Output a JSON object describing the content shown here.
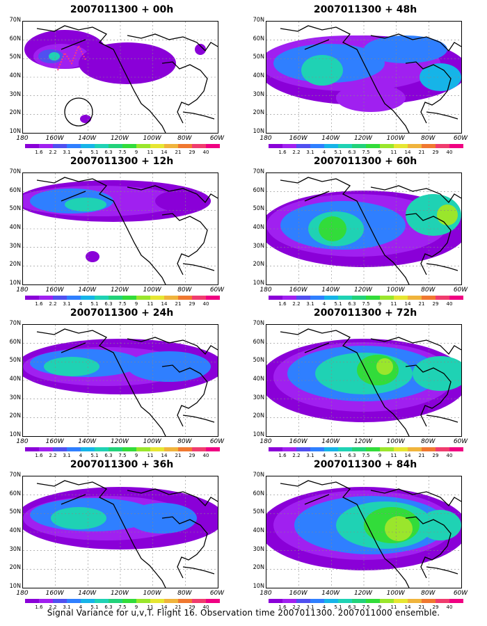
{
  "panels": [
    {
      "title": "2007011300 + 00h"
    },
    {
      "title": "2007011300 + 48h"
    },
    {
      "title": "2007011300 + 12h"
    },
    {
      "title": "2007011300 + 60h"
    },
    {
      "title": "2007011300 + 24h"
    },
    {
      "title": "2007011300 + 72h"
    },
    {
      "title": "2007011300 + 36h"
    },
    {
      "title": "2007011300 + 84h"
    }
  ],
  "lat_labels": [
    "70N",
    "60N",
    "50N",
    "40N",
    "30N",
    "20N",
    "10N"
  ],
  "lon_labels": [
    "180",
    "160W",
    "140W",
    "120W",
    "100W",
    "80W",
    "60W"
  ],
  "colorbar_labels": [
    "1.6",
    "2.2",
    "3.1",
    "4",
    "5.1",
    "6.3",
    "7.5",
    "9",
    "11",
    "14",
    "21",
    "29",
    "40"
  ],
  "colorbar_colors": [
    "#8a00d8",
    "#a020f0",
    "#5050f0",
    "#2f7fff",
    "#16b4e8",
    "#1fd2b4",
    "#22d27a",
    "#32dc3a",
    "#9ae62c",
    "#e6e632",
    "#f0b43c",
    "#f07830",
    "#f03c6e",
    "#f00082"
  ],
  "caption": "Signal Variance for u,v,T. Flight 16. Observation time 2007011300. 2007011000 ensemble."
}
